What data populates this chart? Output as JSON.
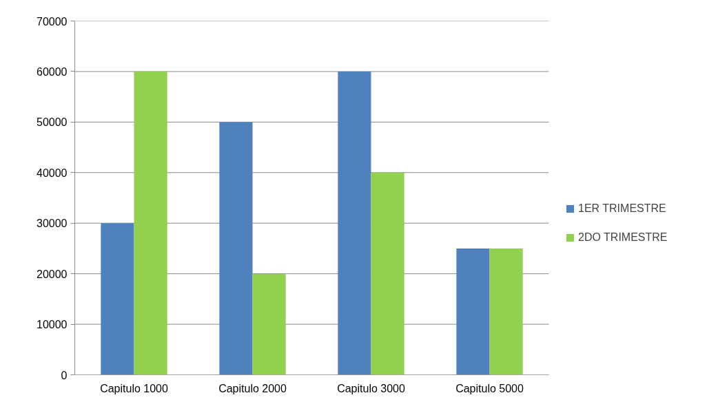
{
  "chart_data": {
    "type": "bar",
    "categories": [
      "Capitulo 1000",
      "Capitulo 2000",
      "Capitulo 3000",
      "Capitulo 5000"
    ],
    "series": [
      {
        "name": "1ER TRIMESTRE",
        "color": "#4f81bd",
        "values": [
          30000,
          50000,
          60000,
          25000
        ]
      },
      {
        "name": "2DO TRIMESTRE",
        "color": "#92d050",
        "values": [
          60000,
          20000,
          40000,
          25000
        ]
      }
    ],
    "ylim": [
      0,
      70000
    ],
    "yticks": [
      0,
      10000,
      20000,
      30000,
      40000,
      50000,
      60000,
      70000
    ],
    "grid": "y",
    "legend": "right"
  }
}
